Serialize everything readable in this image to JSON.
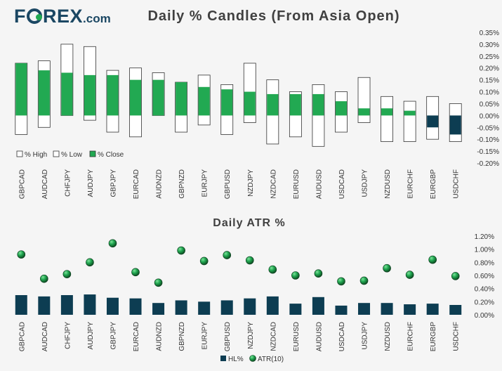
{
  "logo": {
    "brand": "FOREX",
    "tld": ".com",
    "o_color": "#22a952"
  },
  "chart_data": [
    {
      "type": "bar",
      "subtype": "candle-range",
      "title": "Daily % Candles (From Asia Open)",
      "categories": [
        "GBPCAD",
        "AUDCAD",
        "CHFJPY",
        "AUDJPY",
        "GBPJPY",
        "EURCAD",
        "AUDNZD",
        "GBPNZD",
        "EURJPY",
        "GBPUSD",
        "NZDJPY",
        "NZDCAD",
        "EURUSD",
        "AUDUSD",
        "USDCAD",
        "USDJPY",
        "NZDUSD",
        "EURCHF",
        "EURGBP",
        "USDCHF"
      ],
      "series": [
        {
          "name": "% High",
          "values": [
            0.22,
            0.23,
            0.3,
            0.29,
            0.19,
            0.2,
            0.18,
            0.14,
            0.17,
            0.13,
            0.22,
            0.15,
            0.1,
            0.13,
            0.1,
            0.16,
            0.08,
            0.06,
            0.08,
            0.05
          ]
        },
        {
          "name": "% Low",
          "values": [
            -0.08,
            -0.05,
            0.0,
            -0.02,
            -0.07,
            -0.09,
            0.0,
            -0.07,
            -0.04,
            -0.08,
            -0.03,
            -0.12,
            -0.09,
            -0.13,
            -0.07,
            -0.03,
            -0.11,
            -0.11,
            -0.1,
            -0.11
          ]
        },
        {
          "name": "% Close",
          "values": [
            0.22,
            0.19,
            0.18,
            0.17,
            0.17,
            0.15,
            0.15,
            0.14,
            0.12,
            0.11,
            0.1,
            0.09,
            0.09,
            0.09,
            0.06,
            0.03,
            0.03,
            0.02,
            -0.05,
            -0.08
          ]
        }
      ],
      "ylim": [
        -0.2,
        0.35
      ],
      "yticks": [
        "0.35%",
        "0.30%",
        "0.25%",
        "0.20%",
        "0.15%",
        "0.10%",
        "0.05%",
        "0.00%",
        "-0.05%",
        "-0.10%",
        "-0.15%",
        "-0.20%"
      ],
      "legend_position": "bottom-left",
      "colors": {
        "up": "#22a952",
        "down": "#0d3d52",
        "range": "#ffffff",
        "outline": "#333333"
      }
    },
    {
      "type": "bar+scatter",
      "title": "Daily ATR %",
      "categories": [
        "GBPCAD",
        "AUDCAD",
        "CHFJPY",
        "AUDJPY",
        "GBPJPY",
        "EURCAD",
        "AUDNZD",
        "GBPNZD",
        "EURJPY",
        "GBPUSD",
        "NZDJPY",
        "NZDCAD",
        "EURUSD",
        "AUDUSD",
        "USDCAD",
        "USDJPY",
        "NZDUSD",
        "EURCHF",
        "EURGBP",
        "USDCHF"
      ],
      "series": [
        {
          "name": "HL%",
          "values": [
            0.3,
            0.28,
            0.3,
            0.31,
            0.26,
            0.25,
            0.18,
            0.22,
            0.2,
            0.22,
            0.25,
            0.28,
            0.17,
            0.27,
            0.14,
            0.18,
            0.18,
            0.16,
            0.17,
            0.15
          ]
        },
        {
          "name": "ATR(10)",
          "values": [
            0.92,
            0.55,
            0.62,
            0.8,
            1.09,
            0.65,
            0.49,
            0.98,
            0.82,
            0.91,
            0.83,
            0.69,
            0.6,
            0.63,
            0.51,
            0.52,
            0.71,
            0.61,
            0.84,
            0.59
          ]
        }
      ],
      "ylim": [
        0,
        1.2
      ],
      "yticks": [
        "1.20%",
        "1.00%",
        "0.80%",
        "0.60%",
        "0.40%",
        "0.20%",
        "0.00%"
      ],
      "legend_position": "bottom-center",
      "colors": {
        "bar": "#0d3d52",
        "dot": "#22a952"
      }
    }
  ]
}
